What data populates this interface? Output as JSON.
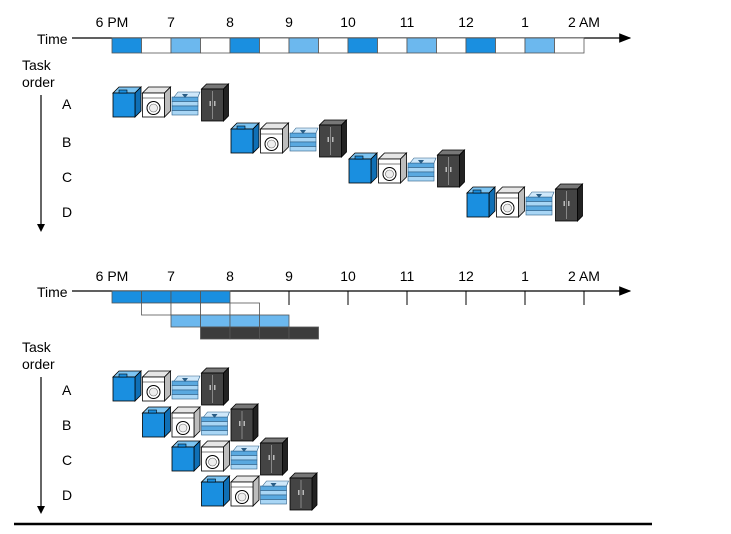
{
  "diagrams": [
    {
      "time_label": "Time",
      "hours": [
        "6 PM",
        "7",
        "8",
        "9",
        "10",
        "11",
        "12",
        "1",
        "2 AM"
      ],
      "task_axis_label": [
        "Task",
        "order"
      ],
      "tasks": [
        "A",
        "B",
        "C",
        "D"
      ],
      "mode": "sequential"
    },
    {
      "time_label": "Time",
      "hours": [
        "6 PM",
        "7",
        "8",
        "9",
        "10",
        "11",
        "12",
        "1",
        "2 AM"
      ],
      "task_axis_label": [
        "Task",
        "order"
      ],
      "tasks": [
        "A",
        "B",
        "C",
        "D"
      ],
      "mode": "pipelined"
    }
  ],
  "stages": [
    {
      "icon": "washer-icon",
      "color": "#1a8fe0"
    },
    {
      "icon": "dryer-icon",
      "color": "#ffffff"
    },
    {
      "icon": "folded-clothes-icon",
      "color": "#6cb8ee"
    },
    {
      "icon": "closet-icon",
      "color": "#3c3c3c"
    }
  ]
}
